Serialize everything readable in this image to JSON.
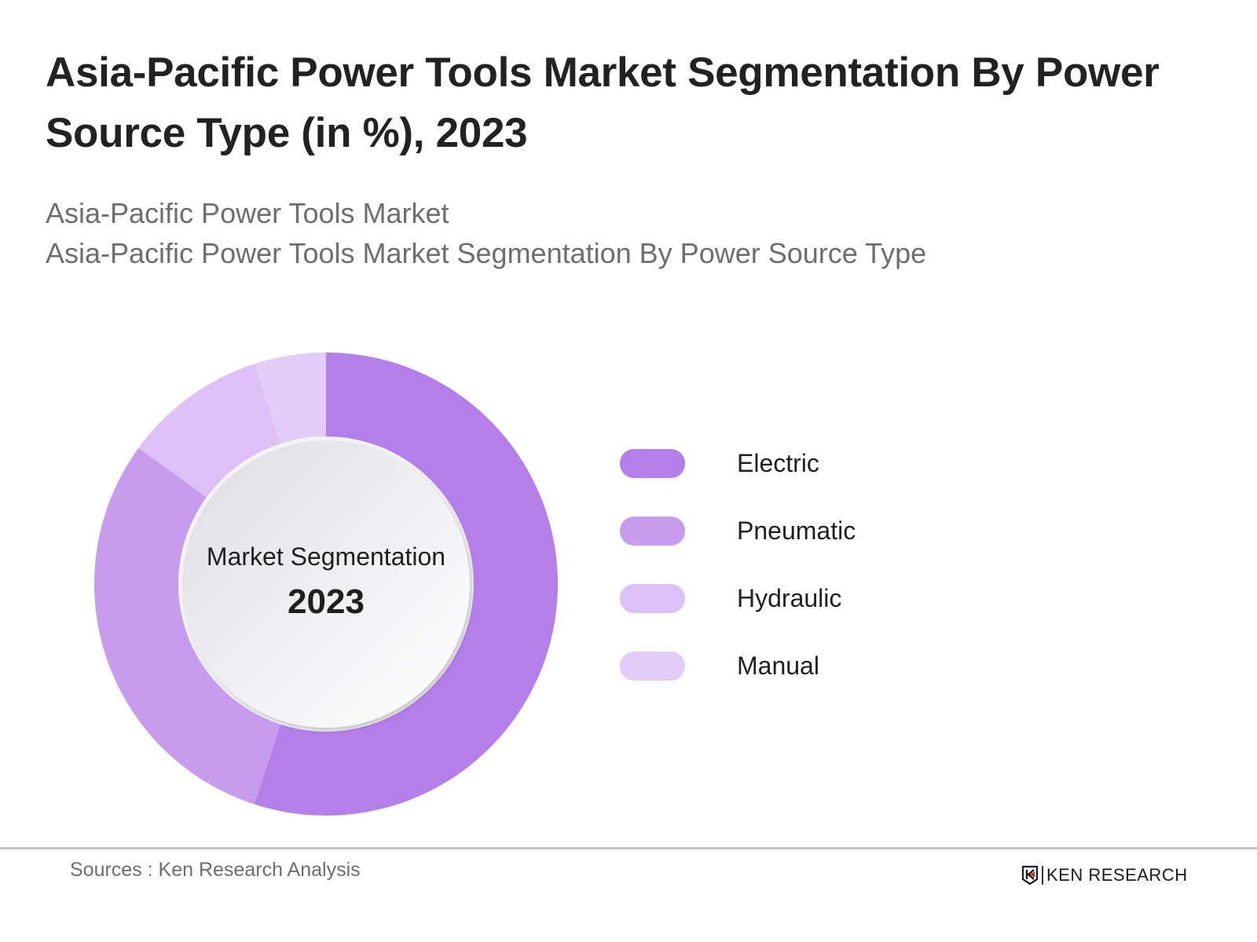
{
  "header": {
    "title": "Asia-Pacific Power Tools Market Segmentation By Power Source Type (in %), 2023",
    "subtitles": [
      "Asia-Pacific Power Tools Market",
      "Asia-Pacific Power Tools Market Segmentation By Power Source Type"
    ]
  },
  "center": {
    "title": "Market Segmentation",
    "year": "2023"
  },
  "legend": {
    "items": [
      {
        "label": "Electric",
        "color": "#B57FEA"
      },
      {
        "label": "Pneumatic",
        "color": "#C79CEE"
      },
      {
        "label": "Hydraulic",
        "color": "#DCC0F6"
      },
      {
        "label": "Manual",
        "color": "#E2CDF8"
      }
    ]
  },
  "footer": {
    "sources": "Sources : Ken Research Analysis",
    "brand": "KEN RESEARCH",
    "brand_icon": "ken-research-logo-icon"
  },
  "chart_data": {
    "type": "pie",
    "variant": "donut",
    "title": "Asia-Pacific Power Tools Market Segmentation By Power Source Type (in %), 2023",
    "subtitle": "Asia-Pacific Power Tools Market Segmentation By Power Source Type",
    "center_text": [
      "Market Segmentation",
      "2023"
    ],
    "categories": [
      "Electric",
      "Pneumatic",
      "Hydraulic",
      "Manual"
    ],
    "values": [
      55,
      30,
      10,
      5
    ],
    "unit": "%",
    "colors": [
      "#B57FEA",
      "#C79CEE",
      "#DCC0F6",
      "#E2CDF8"
    ],
    "start_angle": "12 o'clock, clockwise",
    "data_labels": false,
    "legend_position": "right"
  }
}
